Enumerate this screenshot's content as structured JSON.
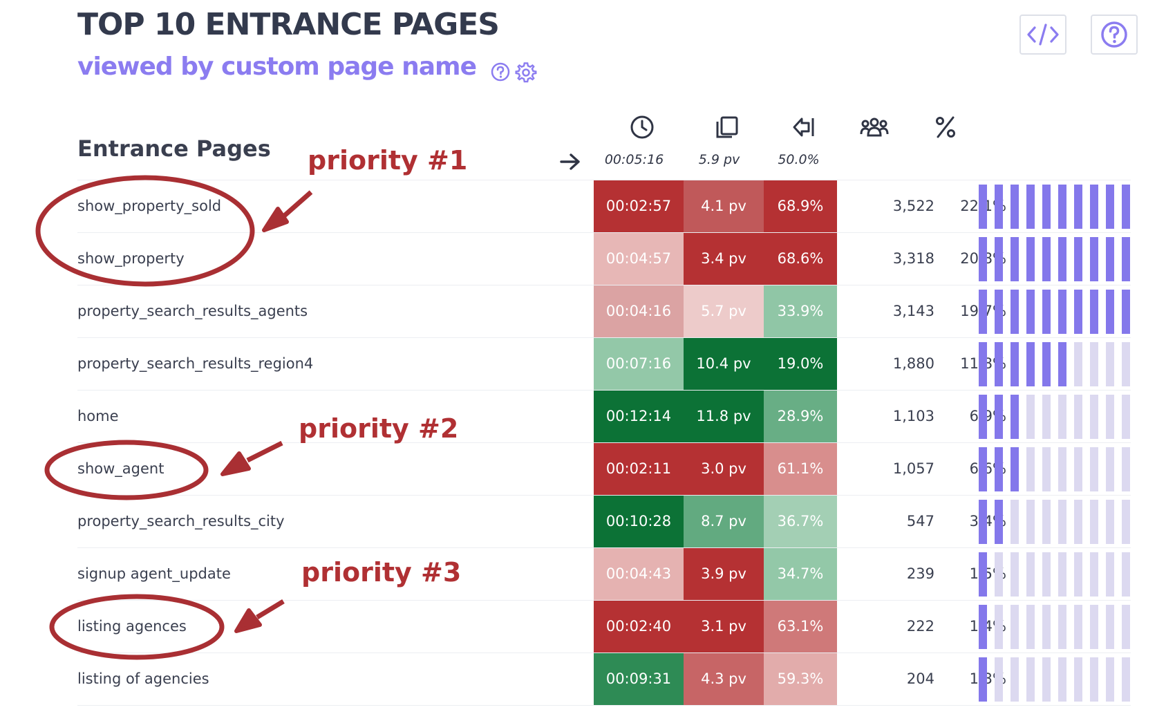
{
  "header": {
    "title": "TOP 10 ENTRANCE PAGES",
    "subtitle": "viewed by custom page name",
    "subtitle_help_icon": "help-circle-icon",
    "subtitle_settings_icon": "gear-icon",
    "embed_button_icon": "code-icon",
    "help_button_icon": "help-circle-icon"
  },
  "table": {
    "section_title": "Entrance Pages",
    "entrance_icon": "arrow-right-icon",
    "columns": [
      {
        "icon": "clock-icon",
        "summary": "00:05:16"
      },
      {
        "icon": "pages-icon",
        "summary": "5.9 pv"
      },
      {
        "icon": "exit-icon",
        "summary": "50.0%"
      },
      {
        "icon": "visitors-icon",
        "summary": ""
      },
      {
        "icon": "percent-icon",
        "summary": ""
      }
    ],
    "rows": [
      {
        "page": "show_property_sold",
        "time": "00:02:57",
        "pv": "4.1 pv",
        "exit": "68.9%",
        "visitors": "3,522",
        "percent": "22.1%",
        "share": 0.221,
        "time_bg": "#b53133",
        "pv_bg": "#c0595a",
        "exit_bg": "#b53133"
      },
      {
        "page": "show_property",
        "time": "00:04:57",
        "pv": "3.4 pv",
        "exit": "68.6%",
        "visitors": "3,318",
        "percent": "20.8%",
        "share": 0.208,
        "time_bg": "#e7b7b6",
        "pv_bg": "#b53133",
        "exit_bg": "#b53133"
      },
      {
        "page": "property_search_results_agents",
        "time": "00:04:16",
        "pv": "5.7 pv",
        "exit": "33.9%",
        "visitors": "3,143",
        "percent": "19.7%",
        "share": 0.197,
        "time_bg": "#dba3a3",
        "pv_bg": "#edcbca",
        "exit_bg": "#90c6a6"
      },
      {
        "page": "property_search_results_region4",
        "time": "00:07:16",
        "pv": "10.4 pv",
        "exit": "19.0%",
        "visitors": "1,880",
        "percent": "11.8%",
        "share": 0.118,
        "time_bg": "#93c8a8",
        "pv_bg": "#0c7236",
        "exit_bg": "#0c7236"
      },
      {
        "page": "home",
        "time": "00:12:14",
        "pv": "11.8 pv",
        "exit": "28.9%",
        "visitors": "1,103",
        "percent": "6.9%",
        "share": 0.069,
        "time_bg": "#0c7236",
        "pv_bg": "#0c7236",
        "exit_bg": "#68ae85"
      },
      {
        "page": "show_agent",
        "time": "00:02:11",
        "pv": "3.0 pv",
        "exit": "61.1%",
        "visitors": "1,057",
        "percent": "6.6%",
        "share": 0.066,
        "time_bg": "#b53133",
        "pv_bg": "#b53133",
        "exit_bg": "#d88e8d"
      },
      {
        "page": "property_search_results_city",
        "time": "00:10:28",
        "pv": "8.7 pv",
        "exit": "36.7%",
        "visitors": "547",
        "percent": "3.4%",
        "share": 0.034,
        "time_bg": "#0c7236",
        "pv_bg": "#62aa80",
        "exit_bg": "#a3cfb4"
      },
      {
        "page": "signup agent_update",
        "time": "00:04:43",
        "pv": "3.9 pv",
        "exit": "34.7%",
        "visitors": "239",
        "percent": "1.5%",
        "share": 0.015,
        "time_bg": "#e5b2b1",
        "pv_bg": "#b53133",
        "exit_bg": "#93c8a8"
      },
      {
        "page": "listing agences",
        "time": "00:02:40",
        "pv": "3.1 pv",
        "exit": "63.1%",
        "visitors": "222",
        "percent": "1.4%",
        "share": 0.014,
        "time_bg": "#b53133",
        "pv_bg": "#b53133",
        "exit_bg": "#cf7979"
      },
      {
        "page": "listing of agencies",
        "time": "00:09:31",
        "pv": "4.3 pv",
        "exit": "59.3%",
        "visitors": "204",
        "percent": "1.3%",
        "share": 0.013,
        "time_bg": "#2e8b55",
        "pv_bg": "#c76566",
        "exit_bg": "#e2acab"
      }
    ],
    "bar_colors": {
      "filled": "#8478eb",
      "empty": "#dcd9f0"
    }
  },
  "annotations": [
    {
      "label": "priority #1"
    },
    {
      "label": "priority #2"
    },
    {
      "label": "priority #3"
    }
  ],
  "annotation_color": "#a92f33"
}
